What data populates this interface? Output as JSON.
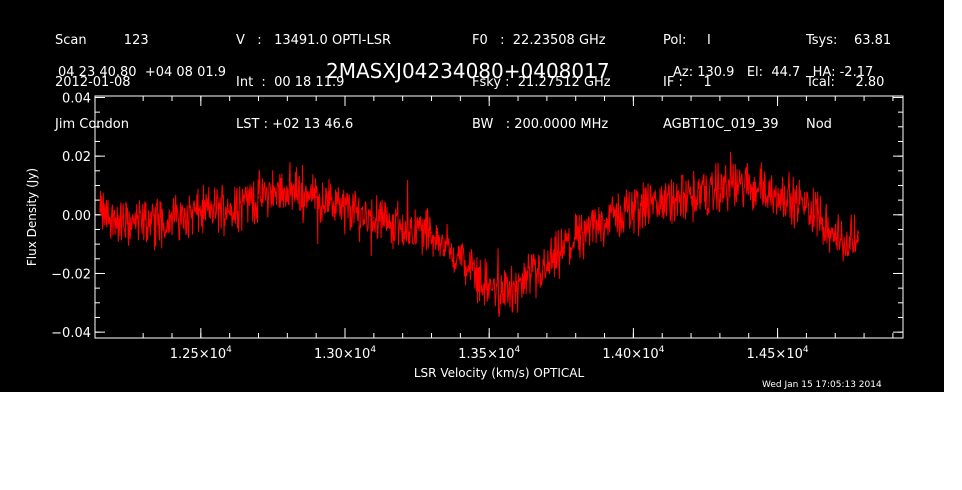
{
  "header": {
    "col1": [
      "Scan         123",
      "2012-01-08",
      "Jim Condon"
    ],
    "col2": [
      "V   :   13491.0 OPTI-LSR",
      "Int  :  00 18 11.9",
      "LST : +02 13 46.6"
    ],
    "col3": [
      "F0   :  22.23508 GHz",
      "Fsky :  21.27512 GHz",
      "BW   : 200.0000 MHz"
    ],
    "col4": [
      "Pol:     I",
      "IF :     1",
      "AGBT10C_019_39"
    ],
    "col5": [
      "Tsys:    63.81",
      "Tcal:     2.80",
      "Nod"
    ],
    "coords": "04 23 40.80  +04 08 01.9",
    "source": "2MASXJ04234080+0408017",
    "pointing": "Az: 130.9   El:  44.7   HA: -2.17",
    "timestamp": "Wed Jan 15 17:05:13 2014"
  },
  "colors": {
    "background": "#000000",
    "axes": "#ffffff",
    "trace": "#ff0000"
  },
  "chart_data": {
    "type": "line",
    "title": "2MASXJ04234080+0408017",
    "xlabel": "LSR Velocity (km/s) OPTICAL",
    "ylabel": "Flux Density (Jy)",
    "xlim": [
      12133,
      14935
    ],
    "ylim": [
      -0.042,
      0.0405
    ],
    "x_ticks": [
      {
        "value": 12500,
        "mantissa": "1.25",
        "exponent": "4"
      },
      {
        "value": 13000,
        "mantissa": "1.30",
        "exponent": "4"
      },
      {
        "value": 13500,
        "mantissa": "1.35",
        "exponent": "4"
      },
      {
        "value": 14000,
        "mantissa": "1.40",
        "exponent": "4"
      },
      {
        "value": 14500,
        "mantissa": "1.45",
        "exponent": "4"
      }
    ],
    "x_tick_multiplier": "×10",
    "y_ticks": [
      {
        "value": 0.04,
        "label": "0.04"
      },
      {
        "value": 0.02,
        "label": "0.02"
      },
      {
        "value": 0.0,
        "label": "0.00"
      },
      {
        "value": -0.02,
        "label": "−0.02"
      },
      {
        "value": -0.04,
        "label": "−0.04"
      }
    ],
    "series": [
      {
        "color": "#ff0000",
        "x": [
          12150,
          12200,
          12250,
          12300,
          12400,
          12500,
          12600,
          12700,
          12800,
          12850,
          12900,
          13000,
          13100,
          13200,
          13300,
          13400,
          13500,
          13550,
          13600,
          13700,
          13800,
          13900,
          14000,
          14100,
          14200,
          14300,
          14400,
          14500,
          14600,
          14650,
          14700,
          14750,
          14780
        ],
        "y": [
          0.001,
          -0.002,
          -0.003,
          -0.002,
          -0.001,
          0.001,
          0.003,
          0.006,
          0.009,
          0.008,
          0.006,
          0.002,
          -0.001,
          -0.004,
          -0.006,
          -0.015,
          -0.025,
          -0.026,
          -0.025,
          -0.018,
          -0.008,
          -0.002,
          0.002,
          0.004,
          0.006,
          0.009,
          0.01,
          0.007,
          0.003,
          0.0,
          -0.008,
          -0.01,
          -0.006
        ]
      }
    ]
  }
}
